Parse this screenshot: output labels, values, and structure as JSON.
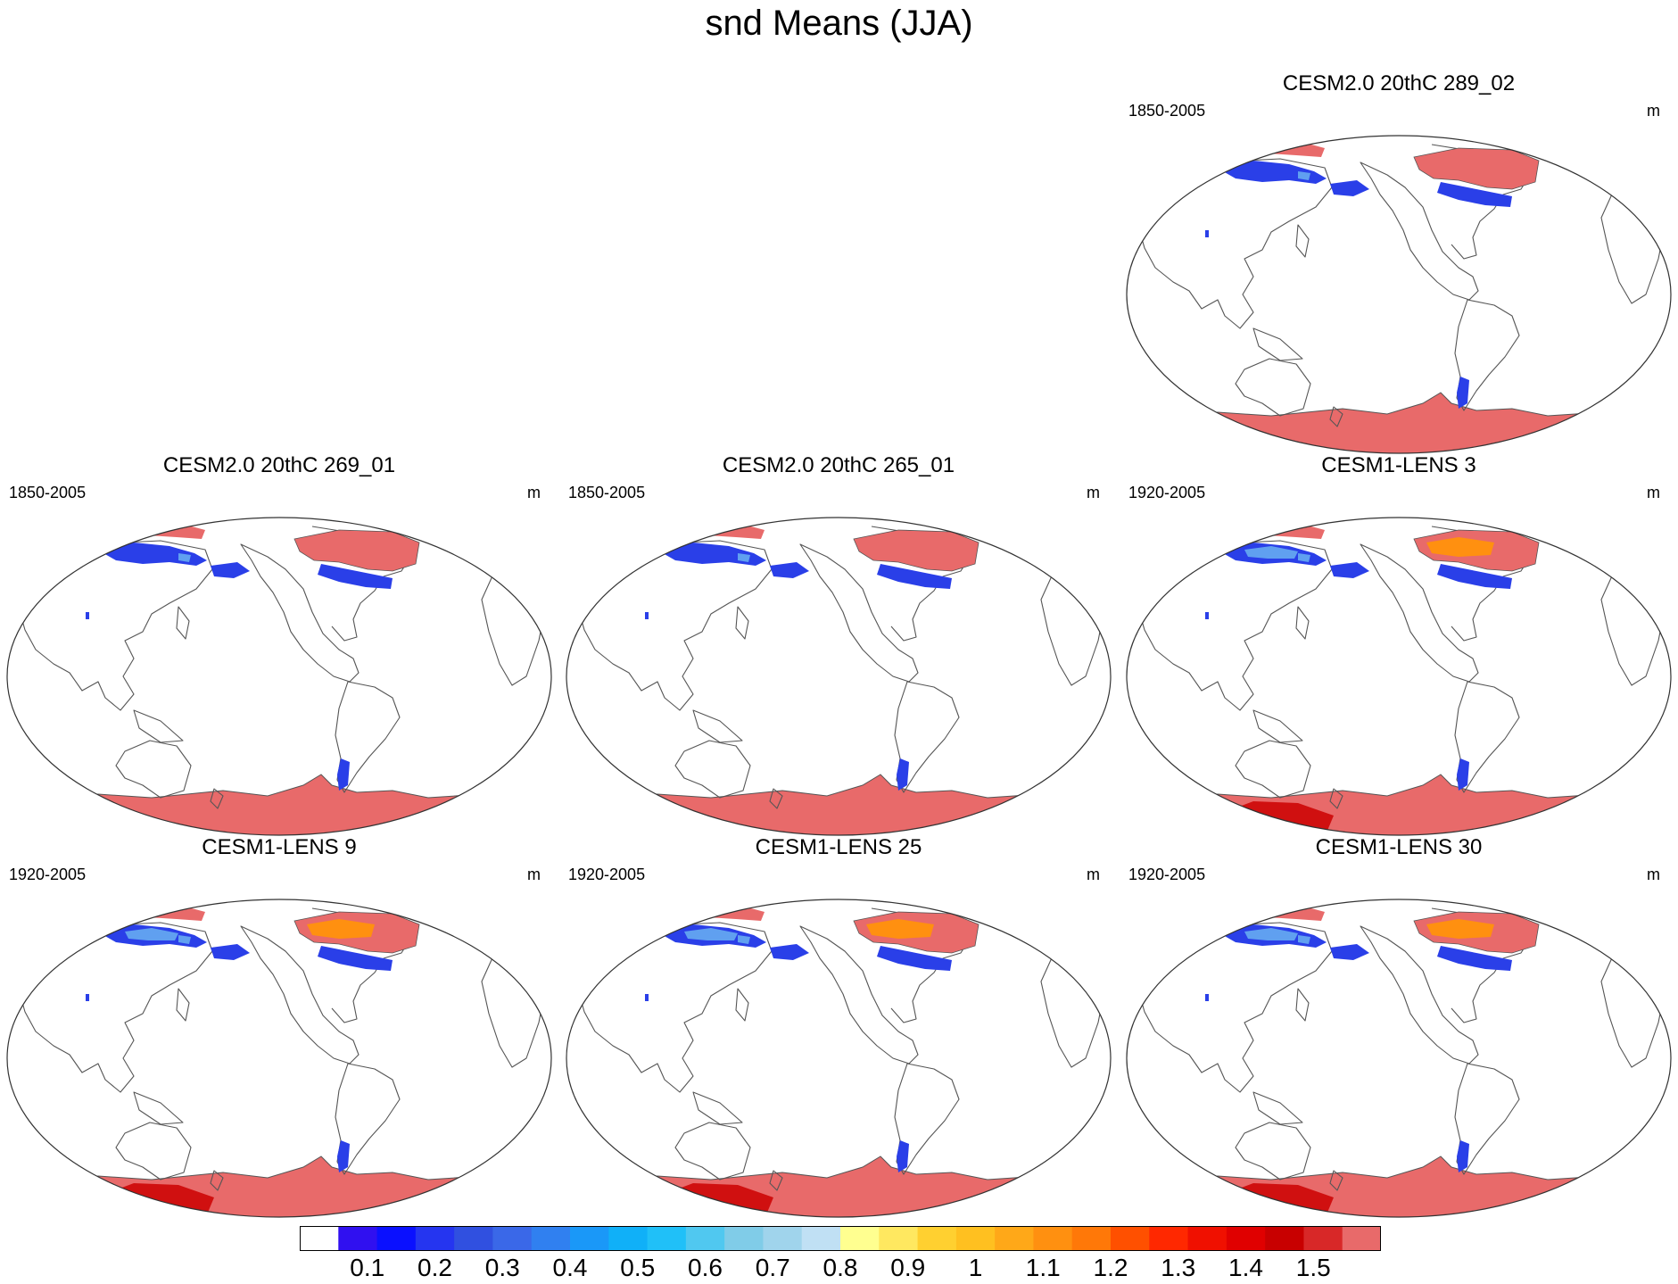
{
  "title": "snd Means (JJA)",
  "panels": [
    {
      "id": "p289",
      "title": "CESM2.0 20thC 289_02",
      "years": "1850-2005",
      "units": "m",
      "variant": "cesm2"
    },
    {
      "id": "p269",
      "title": "CESM2.0 20thC 269_01",
      "years": "1850-2005",
      "units": "m",
      "variant": "cesm2"
    },
    {
      "id": "p265",
      "title": "CESM2.0 20thC 265_01",
      "years": "1850-2005",
      "units": "m",
      "variant": "cesm2"
    },
    {
      "id": "lens3",
      "title": "CESM1-LENS 3",
      "years": "1920-2005",
      "units": "m",
      "variant": "lens"
    },
    {
      "id": "lens9",
      "title": "CESM1-LENS 9",
      "years": "1920-2005",
      "units": "m",
      "variant": "lens"
    },
    {
      "id": "lens25",
      "title": "CESM1-LENS 25",
      "years": "1920-2005",
      "units": "m",
      "variant": "lens"
    },
    {
      "id": "lens30",
      "title": "CESM1-LENS 30",
      "years": "1920-2005",
      "units": "m",
      "variant": "lens"
    }
  ],
  "colorbar": {
    "labels": [
      "0.1",
      "0.2",
      "0.3",
      "0.4",
      "0.5",
      "0.6",
      "0.7",
      "0.8",
      "0.9",
      "1",
      "1.1",
      "1.2",
      "1.3",
      "1.4",
      "1.5"
    ],
    "colors": [
      "#ffffff",
      "#3010f0",
      "#0a10ff",
      "#2535f0",
      "#3050e0",
      "#3a68e8",
      "#3080f0",
      "#1a98f8",
      "#10b0f8",
      "#20c0f8",
      "#50c8f0",
      "#80cce8",
      "#a0d4ec",
      "#c0e0f4",
      "#ffff90",
      "#ffe860",
      "#ffd030",
      "#ffc020",
      "#ffa818",
      "#ff9010",
      "#ff7808",
      "#ff5000",
      "#ff2800",
      "#f01000",
      "#e00000",
      "#c80000",
      "#d82828",
      "#e86a6a"
    ]
  },
  "colors": {
    "ocean": "#ffffff",
    "coast": "#555555",
    "snow_low": "#2a3fe8",
    "snow_mid": "#60a0f0",
    "snow_high": "#e86a6a",
    "snow_deep": "#d01010"
  }
}
